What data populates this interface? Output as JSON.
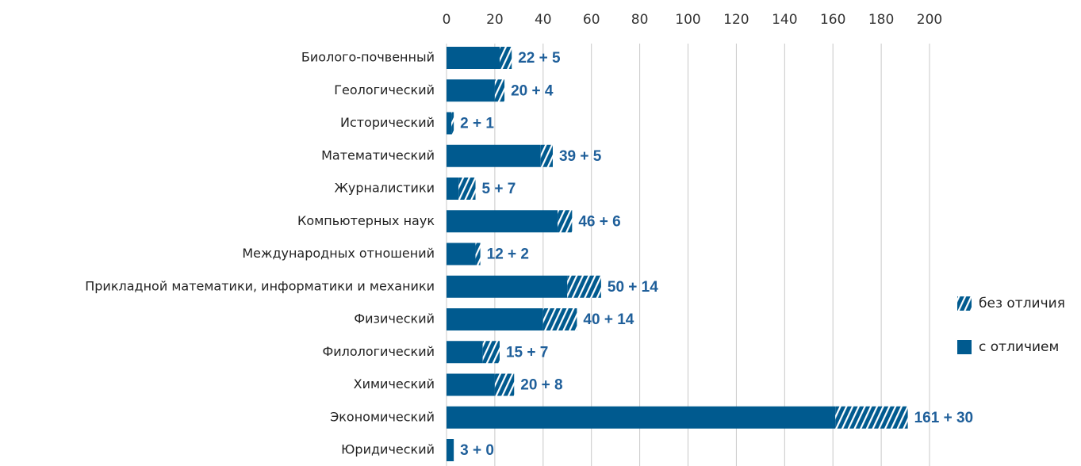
{
  "chart_data": {
    "type": "stacked_barh",
    "categories": [
      "Биолого-почвенный",
      "Геологический",
      "Исторический",
      "Математический",
      "Журналистики",
      "Компьютерных наук",
      "Международных отношений",
      "Прикладной математики, информатики и механики",
      "Физический",
      "Филологический",
      "Химический",
      "Экономический",
      "Юридический"
    ],
    "series": [
      {
        "name": "с отличием",
        "color": "#005a8f",
        "hatch": false,
        "values": [
          22,
          20,
          2,
          39,
          5,
          46,
          12,
          50,
          40,
          15,
          20,
          161,
          3
        ]
      },
      {
        "name": "без отличия",
        "color": "#005a8f",
        "hatch": true,
        "values": [
          5,
          4,
          1,
          5,
          7,
          6,
          2,
          14,
          14,
          7,
          8,
          30,
          0
        ]
      }
    ],
    "data_labels": [
      "22 + 5",
      "20 + 4",
      "2 + 1",
      "39 + 5",
      "5 + 7",
      "46 + 6",
      "12 + 2",
      "50 + 14",
      "40 + 14",
      "15 + 7",
      "20 + 8",
      "161 + 30",
      "3 + 0"
    ],
    "xlim": [
      0,
      200
    ],
    "xticks": [
      0,
      20,
      40,
      60,
      80,
      100,
      120,
      140,
      160,
      180,
      200
    ],
    "grid": true,
    "legend_position": "right"
  }
}
